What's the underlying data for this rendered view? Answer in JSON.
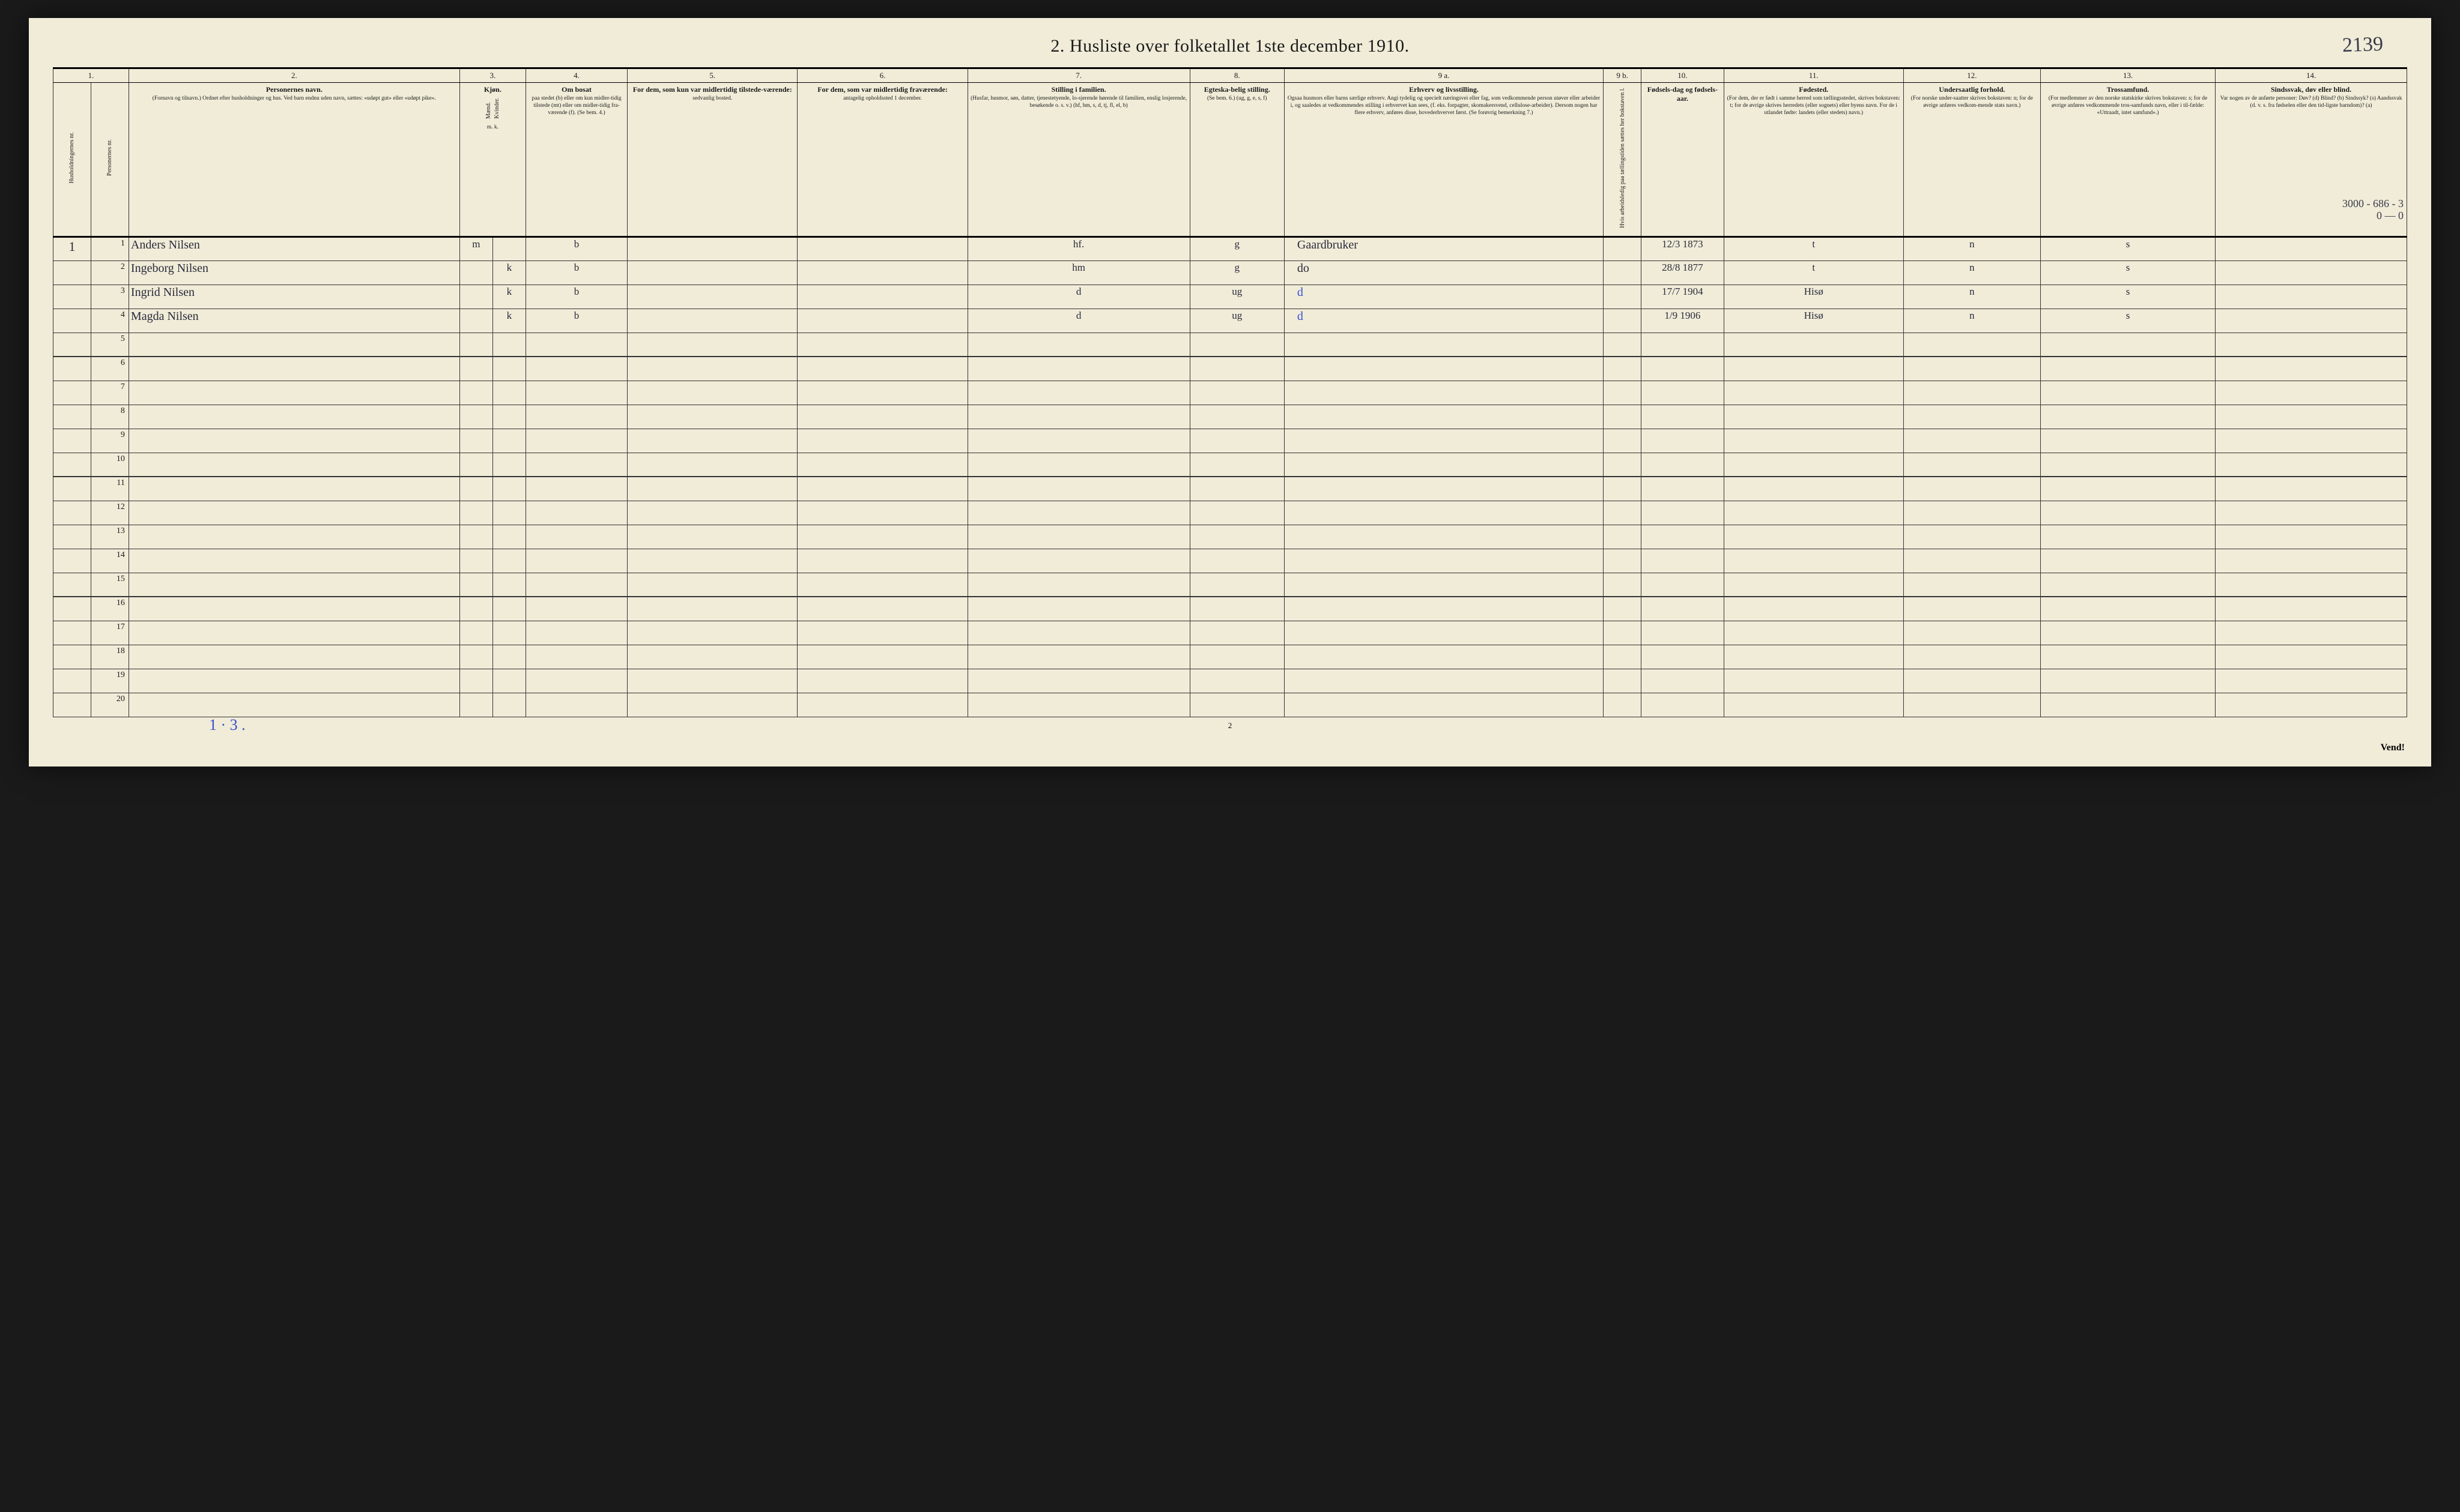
{
  "page": {
    "title": "2.  Husliste over folketallet 1ste december 1910.",
    "corner_note": "2139",
    "page_number_bottom": "2",
    "foot_left_note": "1 · 3 .",
    "vend": "Vend!",
    "margin_annotation_top": "3000 - 686 - 3",
    "margin_annotation_bot": "0 — 0",
    "background_color": "#f0ecd8",
    "border_color": "#333333",
    "handwriting_ink": "#2a2a3a",
    "handwriting_blue": "#3a4ed0"
  },
  "columns": {
    "numbers": [
      "1.",
      "2.",
      "3.",
      "4.",
      "5.",
      "6.",
      "7.",
      "8.",
      "9 a.",
      "9 b.",
      "10.",
      "11.",
      "12.",
      "13.",
      "14."
    ],
    "c1_vert_a": "Husholdningernes nr.",
    "c1_vert_b": "Personernes nr.",
    "c2_main": "Personernes navn.",
    "c2_sub": "(Fornavn og tilnavn.)\nOrdnet efter husholdninger og hus.\nVed barn endnu uden navn, sættes: «udøpt gut» eller «udøpt pike».",
    "c3_main": "Kjøn.",
    "c3_sub_a": "Mænd.",
    "c3_sub_b": "Kvinder.",
    "c3_subline": "m.  k.",
    "c4_main": "Om bosat",
    "c4_sub": "paa stedet (b) eller om kun midler-tidig tilstede (mt) eller om midler-tidig fra-værende (f). (Se bem. 4.)",
    "c5_main": "For dem, som kun var midlertidig tilstede-værende:",
    "c5_sub": "sedvanlig bosted.",
    "c6_main": "For dem, som var midlertidig fraværende:",
    "c6_sub": "antagelig opholdssted 1 december.",
    "c7_main": "Stilling i familien.",
    "c7_sub": "(Husfar, husmor, søn, datter, tjenestetyende, lo-sjerende hørende til familien, enslig losjerende, besøkende o. s. v.)\n(hf, hm, s, d, tj, fl, el, b)",
    "c8_main": "Egteska-belig stilling.",
    "c8_sub": "(Se bem. 6.)\n(ug, g, e, s, f)",
    "c9a_main": "Erhverv og livsstilling.",
    "c9a_sub": "Ogsaa husmors eller barns særlige erhverv. Angi tydelig og specielt næringsvei eller fag, som vedkommende person utøver eller arbeider i, og saaledes at vedkommendes stilling i erhvervet kan sees, (f. eks. forpagter, skomakersvend, cellulose-arbeider). Dersom nogen har flere erhverv, anføres disse, hovederhvervet først.\n(Se forøvrig bemerkning 7.)",
    "c9b_vert": "Hvis arbeidsledig paa tællingstiden sættes her bokstaven l.",
    "c10_main": "Fødsels-dag og fødsels-aar.",
    "c11_main": "Fødested.",
    "c11_sub": "(For dem, der er født i samme herred som tællingsstedet, skrives bokstaven: t; for de øvrige skrives herredets (eller sognets) eller byens navn. For de i utlandet fødte: landets (eller stedets) navn.)",
    "c12_main": "Undersaatlig forhold.",
    "c12_sub": "(For norske under-saatter skrives bokstaven: n; for de øvrige anføres vedkom-mende stats navn.)",
    "c13_main": "Trossamfund.",
    "c13_sub": "(For medlemmer av den norske statskirke skrives bokstaven: s; for de øvrige anføres vedkommende tros-samfunds navn, eller i til-fælde: «Uttraadt, intet samfund».)",
    "c14_main": "Sindssvak, døv eller blind.",
    "c14_sub": "Var nogen av de anførte personer:\nDøv?  (d)\nBlind?  (b)\nSindssyk?  (s)\nAandssvak (d. v. s. fra fødselen eller den tid-ligste barndom)?  (a)"
  },
  "rows": [
    {
      "hh": "1",
      "n": "1",
      "name": "Anders Nilsen",
      "mk": "m",
      "bosat": "b",
      "fam": "hf.",
      "egt": "g",
      "erhverv": "Gaardbruker",
      "erhverv_blue": false,
      "fods": "12/3 1873",
      "fsted": "t",
      "und": "n",
      "tros": "s"
    },
    {
      "hh": "",
      "n": "2",
      "name": "Ingeborg Nilsen",
      "mk": "k",
      "bosat": "b",
      "fam": "hm",
      "egt": "g",
      "erhverv": "do",
      "erhverv_blue": false,
      "fods": "28/8 1877",
      "fsted": "t",
      "und": "n",
      "tros": "s"
    },
    {
      "hh": "",
      "n": "3",
      "name": "Ingrid Nilsen",
      "mk": "k",
      "bosat": "b",
      "fam": "d",
      "egt": "ug",
      "erhverv": "d",
      "erhverv_blue": true,
      "fods": "17/7 1904",
      "fsted": "Hisø",
      "und": "n",
      "tros": "s"
    },
    {
      "hh": "",
      "n": "4",
      "name": "Magda Nilsen",
      "mk": "k",
      "bosat": "b",
      "fam": "d",
      "egt": "ug",
      "erhverv": "d",
      "erhverv_blue": true,
      "fods": "1/9 1906",
      "fsted": "Hisø",
      "und": "n",
      "tros": "s"
    }
  ],
  "empty_rows": [
    5,
    6,
    7,
    8,
    9,
    10,
    11,
    12,
    13,
    14,
    15,
    16,
    17,
    18,
    19,
    20
  ]
}
